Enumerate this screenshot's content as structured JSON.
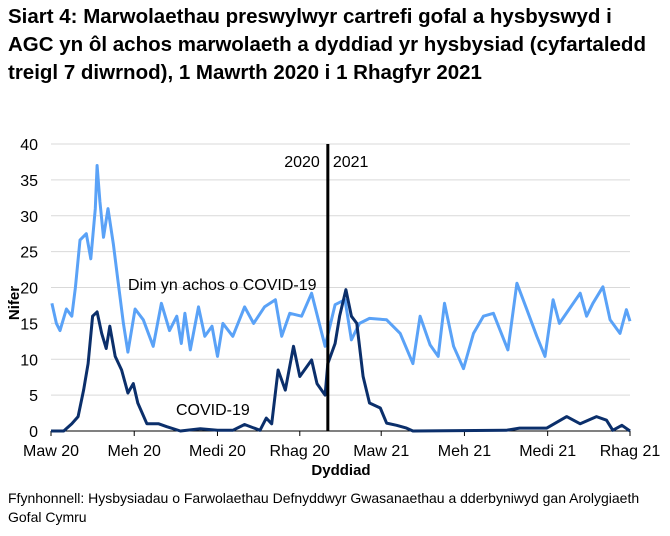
{
  "chart_data": {
    "type": "line",
    "title": "Siart 4: Marwolaethau preswylwyr cartrefi gofal a hysbyswyd i AGC yn ôl achos marwolaeth a dyddiad yr hysbysiad (cyfartaledd treigl 7 diwrnod), 1 Mawrth 2020 i 1 Rhagfyr 2021",
    "xlabel": "Dyddiad",
    "ylabel": "Nifer",
    "xlim": [
      "2020-03-01",
      "2021-12-01"
    ],
    "ylim": [
      0,
      40
    ],
    "yticks": [
      0,
      5,
      10,
      15,
      20,
      25,
      30,
      35,
      40
    ],
    "xticks": [
      {
        "date": "2020-03-01",
        "label": "Maw 20"
      },
      {
        "date": "2020-06-01",
        "label": "Meh 20"
      },
      {
        "date": "2020-09-01",
        "label": "Medi 20"
      },
      {
        "date": "2020-12-01",
        "label": "Rhag 20"
      },
      {
        "date": "2021-03-01",
        "label": "Maw 21"
      },
      {
        "date": "2021-06-01",
        "label": "Meh 21"
      },
      {
        "date": "2021-09-01",
        "label": "Medi 21"
      },
      {
        "date": "2021-12-01",
        "label": "Rhag 21"
      }
    ],
    "grid": true,
    "colors": {
      "non_covid": "#5aa2f7",
      "covid": "#0b2f6b",
      "grid": "#d9d9d9"
    },
    "annotations": [
      {
        "type": "vline",
        "date": "2021-01-01",
        "label_left": "2020",
        "label_right": "2021"
      }
    ],
    "series": [
      {
        "name": "Dim yn achos o COVID-19",
        "color": "#5aa2f7",
        "points": [
          [
            "2020-03-02",
            17.8
          ],
          [
            "2020-03-07",
            15
          ],
          [
            "2020-03-11",
            14
          ],
          [
            "2020-03-18",
            17
          ],
          [
            "2020-03-24",
            16
          ],
          [
            "2020-03-28",
            20
          ],
          [
            "2020-04-02",
            26.6
          ],
          [
            "2020-04-09",
            27.5
          ],
          [
            "2020-04-14",
            24
          ],
          [
            "2020-04-19",
            31
          ],
          [
            "2020-04-21",
            37
          ],
          [
            "2020-04-24",
            32
          ],
          [
            "2020-04-28",
            27
          ],
          [
            "2020-05-03",
            31
          ],
          [
            "2020-05-09",
            26
          ],
          [
            "2020-05-14",
            21
          ],
          [
            "2020-05-20",
            15
          ],
          [
            "2020-05-25",
            11
          ],
          [
            "2020-06-02",
            17
          ],
          [
            "2020-06-11",
            15.5
          ],
          [
            "2020-06-22",
            11.8
          ],
          [
            "2020-07-01",
            17.8
          ],
          [
            "2020-07-10",
            14
          ],
          [
            "2020-07-18",
            16
          ],
          [
            "2020-07-23",
            12.2
          ],
          [
            "2020-07-27",
            16.4
          ],
          [
            "2020-08-02",
            11.3
          ],
          [
            "2020-08-11",
            17.3
          ],
          [
            "2020-08-18",
            13.2
          ],
          [
            "2020-08-26",
            14.6
          ],
          [
            "2020-09-01",
            10.4
          ],
          [
            "2020-09-07",
            15
          ],
          [
            "2020-09-18",
            13.2
          ],
          [
            "2020-10-01",
            17.3
          ],
          [
            "2020-10-11",
            15
          ],
          [
            "2020-10-23",
            17.3
          ],
          [
            "2020-11-04",
            18.3
          ],
          [
            "2020-11-11",
            13.2
          ],
          [
            "2020-11-20",
            16.4
          ],
          [
            "2020-12-03",
            16
          ],
          [
            "2020-12-14",
            19.2
          ],
          [
            "2020-12-29",
            11.8
          ],
          [
            "2021-01-09",
            17.6
          ],
          [
            "2021-01-20",
            18.3
          ],
          [
            "2021-01-27",
            12.7
          ],
          [
            "2021-02-05",
            15
          ],
          [
            "2021-02-16",
            15.7
          ],
          [
            "2021-03-07",
            15.5
          ],
          [
            "2021-03-22",
            13.6
          ],
          [
            "2021-04-05",
            9.4
          ],
          [
            "2021-04-13",
            16
          ],
          [
            "2021-04-24",
            12
          ],
          [
            "2021-05-03",
            10.4
          ],
          [
            "2021-05-10",
            17.8
          ],
          [
            "2021-05-20",
            11.8
          ],
          [
            "2021-05-31",
            8.7
          ],
          [
            "2021-06-11",
            13.6
          ],
          [
            "2021-06-22",
            16
          ],
          [
            "2021-07-03",
            16.4
          ],
          [
            "2021-07-19",
            11.3
          ],
          [
            "2021-07-29",
            20.6
          ],
          [
            "2021-08-09",
            16.9
          ],
          [
            "2021-08-20",
            13.2
          ],
          [
            "2021-08-29",
            10.4
          ],
          [
            "2021-09-07",
            18.3
          ],
          [
            "2021-09-14",
            15
          ],
          [
            "2021-10-07",
            19.2
          ],
          [
            "2021-10-14",
            16
          ],
          [
            "2021-10-21",
            17.8
          ],
          [
            "2021-11-01",
            20.1
          ],
          [
            "2021-11-09",
            15.5
          ],
          [
            "2021-11-20",
            13.6
          ],
          [
            "2021-11-27",
            16.9
          ],
          [
            "2021-12-01",
            15.3
          ]
        ]
      },
      {
        "name": "COVID-19",
        "color": "#0b2f6b",
        "points": [
          [
            "2020-03-01",
            0
          ],
          [
            "2020-03-15",
            0
          ],
          [
            "2020-03-24",
            1
          ],
          [
            "2020-03-31",
            2
          ],
          [
            "2020-04-06",
            5.7
          ],
          [
            "2020-04-11",
            9.4
          ],
          [
            "2020-04-16",
            16
          ],
          [
            "2020-04-21",
            16.6
          ],
          [
            "2020-04-26",
            13.6
          ],
          [
            "2020-05-01",
            11.5
          ],
          [
            "2020-05-05",
            14.6
          ],
          [
            "2020-05-11",
            10.4
          ],
          [
            "2020-05-18",
            8.5
          ],
          [
            "2020-05-25",
            5.3
          ],
          [
            "2020-05-31",
            6.6
          ],
          [
            "2020-06-05",
            3.9
          ],
          [
            "2020-06-15",
            1
          ],
          [
            "2020-06-28",
            1
          ],
          [
            "2020-07-07",
            0.6
          ],
          [
            "2020-07-22",
            0
          ],
          [
            "2020-08-13",
            0.3
          ],
          [
            "2020-09-01",
            0.1
          ],
          [
            "2020-09-18",
            0.1
          ],
          [
            "2020-10-01",
            0.9
          ],
          [
            "2020-10-18",
            0.1
          ],
          [
            "2020-10-25",
            1.8
          ],
          [
            "2020-10-31",
            1
          ],
          [
            "2020-11-07",
            8.5
          ],
          [
            "2020-11-15",
            5.7
          ],
          [
            "2020-11-24",
            11.8
          ],
          [
            "2020-12-01",
            7.6
          ],
          [
            "2020-12-14",
            9.9
          ],
          [
            "2020-12-20",
            6.6
          ],
          [
            "2020-12-29",
            5
          ],
          [
            "2021-01-01",
            9.4
          ],
          [
            "2021-01-09",
            12.2
          ],
          [
            "2021-01-14",
            16
          ],
          [
            "2021-01-21",
            19.7
          ],
          [
            "2021-01-27",
            16
          ],
          [
            "2021-02-02",
            15
          ],
          [
            "2021-02-09",
            7.6
          ],
          [
            "2021-02-16",
            3.9
          ],
          [
            "2021-02-28",
            3.2
          ],
          [
            "2021-03-07",
            1.1
          ],
          [
            "2021-03-18",
            0.8
          ],
          [
            "2021-03-29",
            0.4
          ],
          [
            "2021-04-05",
            0
          ],
          [
            "2021-07-17",
            0.1
          ],
          [
            "2021-08-01",
            0.4
          ],
          [
            "2021-08-31",
            0.4
          ],
          [
            "2021-09-22",
            2
          ],
          [
            "2021-10-07",
            1
          ],
          [
            "2021-10-25",
            2
          ],
          [
            "2021-11-05",
            1.5
          ],
          [
            "2021-11-12",
            0.1
          ],
          [
            "2021-11-22",
            0.8
          ],
          [
            "2021-12-01",
            0
          ]
        ]
      }
    ],
    "series_labels": [
      "Dim yn achos o COVID-19",
      "COVID-19"
    ]
  },
  "source": "Ffynhonnell: Hysbysiadau o Farwolaethau Defnyddwyr Gwasanaethau a dderbyniwyd gan Arolygiaeth Gofal Cymru"
}
